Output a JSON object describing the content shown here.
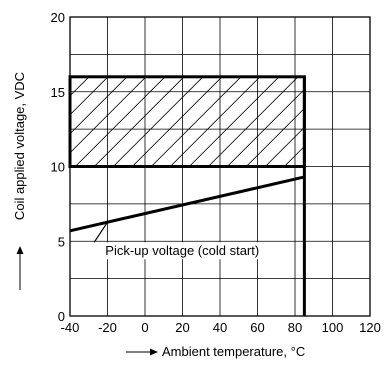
{
  "chart_data": {
    "type": "line",
    "xlabel": "Ambient temperature, °C",
    "ylabel": "Coil applied voltage, VDC",
    "xlim": [
      -40,
      120
    ],
    "ylim": [
      0,
      20
    ],
    "x_ticks": [
      -40,
      -20,
      0,
      20,
      40,
      60,
      80,
      100,
      120
    ],
    "y_ticks": [
      0,
      5,
      10,
      15,
      20
    ],
    "x_tick_labels": [
      "-40",
      "-20",
      "0",
      "20",
      "40",
      "60",
      "80",
      "100",
      "120"
    ],
    "y_tick_labels": [
      "0",
      "5",
      "10",
      "15",
      "20"
    ],
    "grid": true,
    "operating_region": {
      "x_min": -40,
      "x_max": 85,
      "y_min": 10,
      "y_max": 16,
      "fill": "hatched"
    },
    "temperature_limit": {
      "x": 85,
      "y_from": 0,
      "y_to": 16
    },
    "series": [
      {
        "name": "Pick-up voltage (cold start)",
        "x": [
          -40,
          85
        ],
        "y": [
          5.7,
          9.3
        ]
      }
    ],
    "annotations": [
      {
        "text": "Pick-up voltage (cold start)",
        "x": 22,
        "y": 4.4
      }
    ]
  }
}
